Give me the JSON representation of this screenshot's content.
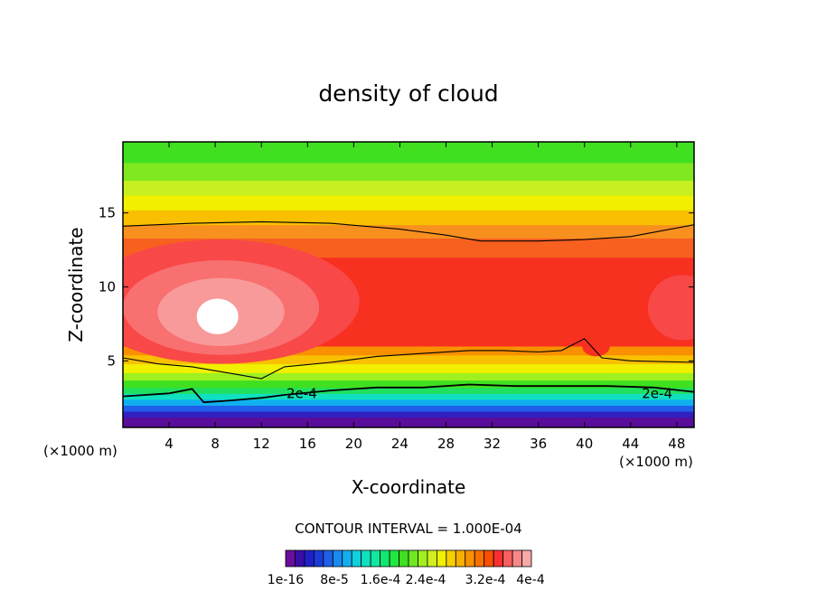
{
  "chart_data": {
    "type": "heatmap",
    "title": "density of cloud",
    "xlabel": "X-coordinate",
    "ylabel": "Z-coordinate",
    "x_unit": "(×1000 m)",
    "x_ticks": [
      4,
      8,
      12,
      16,
      20,
      24,
      28,
      32,
      36,
      40,
      44,
      48
    ],
    "y_ticks": [
      5,
      10,
      15
    ],
    "xlim": [
      0,
      49.5
    ],
    "ylim": [
      0.5,
      19.8
    ],
    "contour_interval_text": "CONTOUR INTERVAL = 1.000E-04",
    "contour_labels": [
      {
        "text": "2e-4",
        "x": 15.5,
        "z": 2.8
      },
      {
        "text": "2e-4",
        "x": 46.3,
        "z": 2.8
      }
    ],
    "colorbar": {
      "colors": [
        "#6a0d9c",
        "#3a0ea8",
        "#2020c8",
        "#1c3ad8",
        "#2060e8",
        "#1a8af0",
        "#10b0f0",
        "#10d0e0",
        "#10e0c0",
        "#10e8a0",
        "#10e870",
        "#20e840",
        "#40e020",
        "#70e820",
        "#a0f020",
        "#d0f020",
        "#f0f000",
        "#f8d000",
        "#f8b000",
        "#f89000",
        "#f87000",
        "#f85000",
        "#f83030",
        "#f86060",
        "#f88888",
        "#f8a8a8"
      ],
      "labels": [
        "1e-16",
        "8e-5",
        "1.6e-4",
        "2.4e-4",
        "3.2e-4",
        "4e-4"
      ]
    },
    "bands": [
      {
        "z_low": 0.5,
        "z_high": 1.2,
        "color": "#5a0c9a"
      },
      {
        "z_low": 1.2,
        "z_high": 1.6,
        "color": "#3020c0"
      },
      {
        "z_low": 1.6,
        "z_high": 2.0,
        "color": "#2060e8"
      },
      {
        "z_low": 2.0,
        "z_high": 2.4,
        "color": "#10b0f0"
      },
      {
        "z_low": 2.4,
        "z_high": 2.8,
        "color": "#10e0c0"
      },
      {
        "z_low": 2.8,
        "z_high": 3.2,
        "color": "#20e060"
      },
      {
        "z_low": 3.2,
        "z_high": 3.7,
        "color": "#40e020"
      },
      {
        "z_low": 3.7,
        "z_high": 4.2,
        "color": "#a0f020"
      },
      {
        "z_low": 4.2,
        "z_high": 4.8,
        "color": "#f0f000"
      },
      {
        "z_low": 4.8,
        "z_high": 5.4,
        "color": "#f8c000"
      },
      {
        "z_low": 5.4,
        "z_high": 6.0,
        "color": "#f89000"
      },
      {
        "z_low": 6.0,
        "z_high": 12.0,
        "color": "#f83020"
      },
      {
        "z_low": 12.0,
        "z_high": 13.3,
        "color": "#f86020"
      },
      {
        "z_low": 13.3,
        "z_high": 14.2,
        "color": "#f89020"
      },
      {
        "z_low": 14.2,
        "z_high": 15.2,
        "color": "#f8c000"
      },
      {
        "z_low": 15.2,
        "z_high": 16.2,
        "color": "#f0f000"
      },
      {
        "z_low": 16.2,
        "z_high": 17.2,
        "color": "#c8f020"
      },
      {
        "z_low": 17.2,
        "z_high": 18.4,
        "color": "#80e820"
      },
      {
        "z_low": 18.4,
        "z_high": 19.8,
        "color": "#40e020"
      }
    ],
    "blobs": [
      {
        "x": 8.5,
        "z": 9.0,
        "rx": 12.0,
        "rz": 4.2,
        "color": "#f84848"
      },
      {
        "x": 8.5,
        "z": 8.6,
        "rx": 8.5,
        "rz": 3.2,
        "color": "#f87070"
      },
      {
        "x": 8.5,
        "z": 8.3,
        "rx": 5.5,
        "rz": 2.3,
        "color": "#f89a9a"
      },
      {
        "x": 8.2,
        "z": 8.0,
        "rx": 1.8,
        "rz": 1.2,
        "color": "#ffffff"
      },
      {
        "x": 48.5,
        "z": 8.6,
        "rx": 3.0,
        "rz": 2.2,
        "color": "#f84848"
      },
      {
        "x": 41.0,
        "z": 6.0,
        "rx": 1.2,
        "rz": 0.7,
        "color": "#f83020"
      }
    ],
    "contour_lines": [
      {
        "name": "upper",
        "points": [
          [
            0,
            14.1
          ],
          [
            6,
            14.3
          ],
          [
            12,
            14.4
          ],
          [
            18,
            14.3
          ],
          [
            24,
            13.9
          ],
          [
            28,
            13.5
          ],
          [
            31,
            13.1
          ],
          [
            36,
            13.1
          ],
          [
            40,
            13.2
          ],
          [
            44,
            13.4
          ],
          [
            49.5,
            14.2
          ]
        ]
      },
      {
        "name": "middle",
        "points": [
          [
            0,
            5.2
          ],
          [
            3,
            4.8
          ],
          [
            6,
            4.6
          ],
          [
            9,
            4.2
          ],
          [
            12,
            3.8
          ],
          [
            14,
            4.6
          ],
          [
            18,
            4.9
          ],
          [
            22,
            5.3
          ],
          [
            26,
            5.5
          ],
          [
            30,
            5.7
          ],
          [
            33,
            5.7
          ],
          [
            36,
            5.6
          ],
          [
            38,
            5.7
          ],
          [
            40,
            6.5
          ],
          [
            41.5,
            5.2
          ],
          [
            44,
            5.0
          ],
          [
            49.5,
            4.9
          ]
        ]
      },
      {
        "name": "lower",
        "points": [
          [
            0,
            2.6
          ],
          [
            4,
            2.8
          ],
          [
            6,
            3.1
          ],
          [
            7,
            2.2
          ],
          [
            9,
            2.3
          ],
          [
            12,
            2.5
          ],
          [
            14,
            2.7
          ],
          [
            18,
            3.0
          ],
          [
            22,
            3.2
          ],
          [
            26,
            3.2
          ],
          [
            30,
            3.4
          ],
          [
            34,
            3.3
          ],
          [
            38,
            3.3
          ],
          [
            42,
            3.3
          ],
          [
            46,
            3.2
          ],
          [
            49.5,
            2.9
          ]
        ]
      }
    ]
  }
}
